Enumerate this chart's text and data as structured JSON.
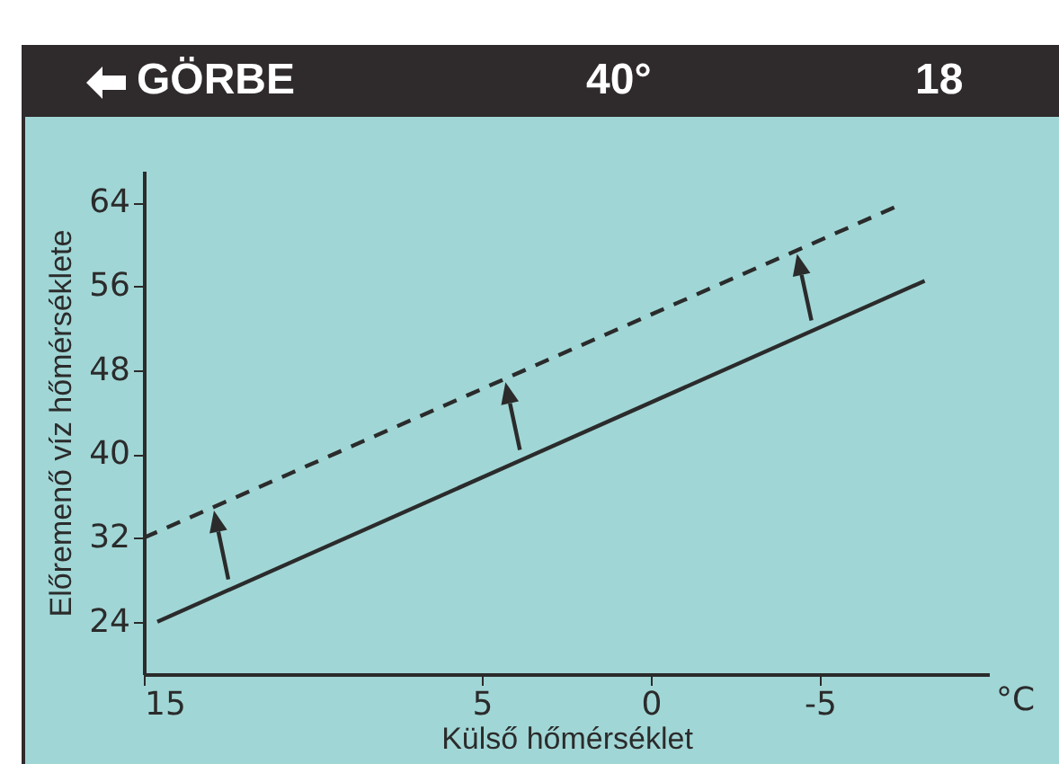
{
  "chart_data": {
    "type": "line",
    "title": "GÖRBE",
    "xlabel": "Külső hőmérséklet",
    "ylabel": "Előremenő víz hőmérséklete",
    "annotations": [
      "40°",
      "18",
      "°C"
    ],
    "xlim": [
      15,
      -10
    ],
    "xticks": [
      15,
      5,
      0,
      -5
    ],
    "ylim": [
      19,
      67
    ],
    "yticks": [
      24,
      32,
      40,
      48,
      56,
      64
    ],
    "grid": false,
    "legend": false,
    "series": [
      {
        "color": "#2b2b2b",
        "line_style": "solid",
        "x": [
          14.6,
          -8.1
        ],
        "values": [
          24,
          56.5
        ]
      },
      {
        "color": "#2b2b2b",
        "line_style": "dashed",
        "x": [
          15,
          -7.2
        ],
        "values": [
          32,
          63.5
        ]
      }
    ]
  }
}
